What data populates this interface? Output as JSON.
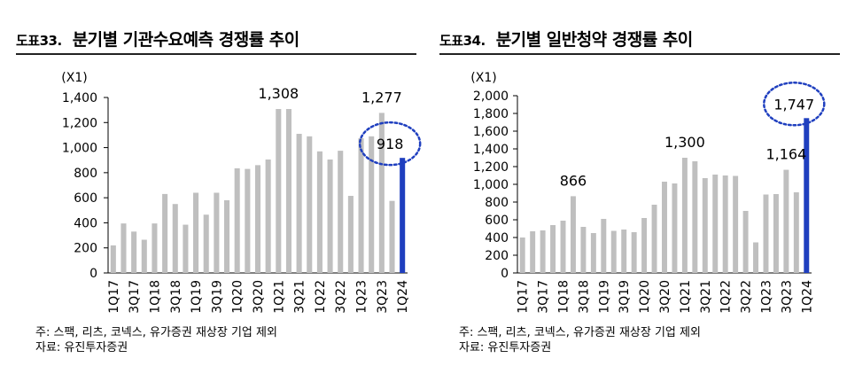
{
  "charts": [
    {
      "figure_no": "도표33.",
      "title": "분기별 기관수요예측 경쟁률 추이",
      "note": "주: 스팩, 리츠, 코넥스, 유가증권 재상장 기업 제외",
      "source": "자료: 유진투자증권"
    },
    {
      "figure_no": "도표34.",
      "title": "분기별 일반청약 경쟁률 추이",
      "note": "주: 스팩, 리츠, 코넥스, 유가증권 재상장 기업 제외",
      "source": "자료: 유진투자증권"
    }
  ],
  "colors": {
    "bar": "#bfbfbf",
    "highlight": "#1f3fbf",
    "circle": "#1f3fbf",
    "axis": "#000000",
    "text": "#000000"
  },
  "chart_data": [
    {
      "type": "bar",
      "title": "분기별 기관수요예측 경쟁률 추이",
      "unit_label": "(X1)",
      "ylim": [
        0,
        1400
      ],
      "yticks": [
        "0",
        "200",
        "400",
        "600",
        "800",
        "1,000",
        "1,200",
        "1,400"
      ],
      "x": [
        "1Q17",
        "2Q17",
        "3Q17",
        "4Q17",
        "1Q18",
        "2Q18",
        "3Q18",
        "4Q18",
        "1Q19",
        "2Q19",
        "3Q19",
        "4Q19",
        "1Q20",
        "2Q20",
        "3Q20",
        "4Q20",
        "1Q21",
        "2Q21",
        "3Q21",
        "4Q21",
        "1Q22",
        "2Q22",
        "3Q22",
        "4Q22",
        "1Q23",
        "2Q23",
        "3Q23",
        "4Q23",
        "1Q24"
      ],
      "x_tick_labels": [
        "1Q17",
        "3Q17",
        "1Q18",
        "3Q18",
        "1Q19",
        "3Q19",
        "1Q20",
        "3Q20",
        "1Q21",
        "3Q21",
        "1Q22",
        "3Q22",
        "1Q23",
        "3Q23",
        "1Q24"
      ],
      "values": [
        220,
        395,
        330,
        265,
        395,
        630,
        550,
        385,
        640,
        465,
        640,
        580,
        835,
        830,
        860,
        905,
        1308,
        1308,
        1110,
        1090,
        970,
        905,
        975,
        615,
        1075,
        1090,
        1277,
        575,
        918
      ],
      "highlight_last": true,
      "annotations": [
        {
          "label": "1,308",
          "x": "1Q21"
        },
        {
          "label": "1,277",
          "x": "3Q23"
        },
        {
          "label": "918",
          "x": "1Q24",
          "circled": true
        }
      ],
      "grid": false,
      "legend": "none"
    },
    {
      "type": "bar",
      "title": "분기별 일반청약 경쟁률 추이",
      "unit_label": "(X1)",
      "ylim": [
        0,
        2000
      ],
      "yticks": [
        "0",
        "200",
        "400",
        "600",
        "800",
        "1,000",
        "1,200",
        "1,400",
        "1,600",
        "1,800",
        "2,000"
      ],
      "x": [
        "1Q17",
        "2Q17",
        "3Q17",
        "4Q17",
        "1Q18",
        "2Q18",
        "3Q18",
        "4Q18",
        "1Q19",
        "2Q19",
        "3Q19",
        "4Q19",
        "1Q20",
        "2Q20",
        "3Q20",
        "4Q20",
        "1Q21",
        "2Q21",
        "3Q21",
        "4Q21",
        "1Q22",
        "2Q22",
        "3Q22",
        "4Q22",
        "1Q23",
        "2Q23",
        "3Q23",
        "4Q23",
        "1Q24"
      ],
      "x_tick_labels": [
        "1Q17",
        "3Q17",
        "1Q18",
        "3Q18",
        "1Q19",
        "3Q19",
        "1Q20",
        "3Q20",
        "1Q21",
        "3Q21",
        "1Q22",
        "3Q22",
        "1Q23",
        "3Q23",
        "1Q24"
      ],
      "values": [
        400,
        470,
        480,
        540,
        590,
        866,
        520,
        450,
        610,
        475,
        490,
        460,
        620,
        770,
        1030,
        1010,
        1300,
        1260,
        1070,
        1110,
        1100,
        1095,
        700,
        345,
        885,
        890,
        1164,
        910,
        1747
      ],
      "highlight_last": true,
      "annotations": [
        {
          "label": "866",
          "x": "2Q18"
        },
        {
          "label": "1,300",
          "x": "1Q21"
        },
        {
          "label": "1,164",
          "x": "3Q23"
        },
        {
          "label": "1,747",
          "x": "1Q24",
          "circled": true
        }
      ],
      "grid": false,
      "legend": "none"
    }
  ]
}
